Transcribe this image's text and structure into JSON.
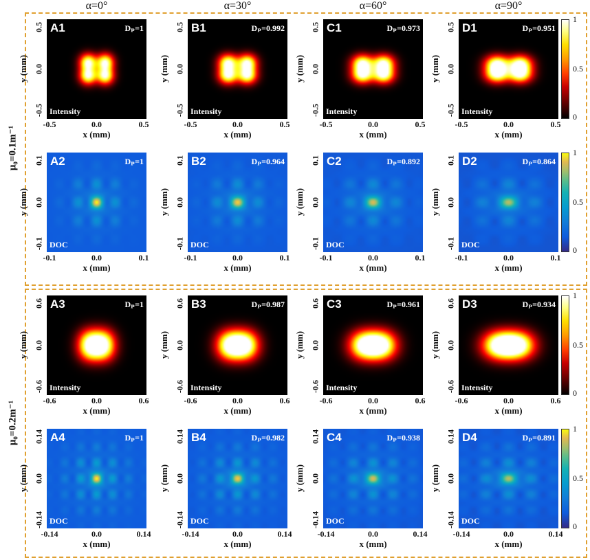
{
  "columns": [
    "α=0°",
    "α=30°",
    "α=60°",
    "α=90°"
  ],
  "groups": [
    {
      "label": "μ₀=0.1m⁻¹"
    },
    {
      "label": "μ₀=0.2m⁻¹"
    }
  ],
  "xlabel": "x (mm)",
  "ylabel": "y (mm)",
  "rows": [
    {
      "type": "Intensity",
      "ticks": [
        "-0.5",
        "0.0",
        "0.5"
      ],
      "ids": [
        "A1",
        "B1",
        "C1",
        "D1"
      ],
      "dp": [
        "Dₚ=1",
        "Dₚ=0.992",
        "Dₚ=0.973",
        "Dₚ=0.951"
      ]
    },
    {
      "type": "DOC",
      "ticks": [
        "-0.1",
        "0.0",
        "0.1"
      ],
      "ids": [
        "A2",
        "B2",
        "C2",
        "D2"
      ],
      "dp": [
        "Dₚ=1",
        "Dₚ=0.964",
        "Dₚ=0.892",
        "Dₚ=0.864"
      ]
    },
    {
      "type": "Intensity",
      "ticks": [
        "-0.6",
        "0.0",
        "0.6"
      ],
      "ids": [
        "A3",
        "B3",
        "C3",
        "D3"
      ],
      "dp": [
        "Dₚ=1",
        "Dₚ=0.987",
        "Dₚ=0.961",
        "Dₚ=0.934"
      ]
    },
    {
      "type": "DOC",
      "ticks": [
        "-0.14",
        "0.0",
        "0.14"
      ],
      "ids": [
        "A4",
        "B4",
        "C4",
        "D4"
      ],
      "dp": [
        "Dₚ=1",
        "Dₚ=0.982",
        "Dₚ=0.938",
        "Dₚ=0.891"
      ]
    }
  ],
  "colorbar_ticks": [
    "1",
    "0.5",
    "0"
  ],
  "colormaps": {
    "Intensity": "hot",
    "DOC": "parula"
  }
}
